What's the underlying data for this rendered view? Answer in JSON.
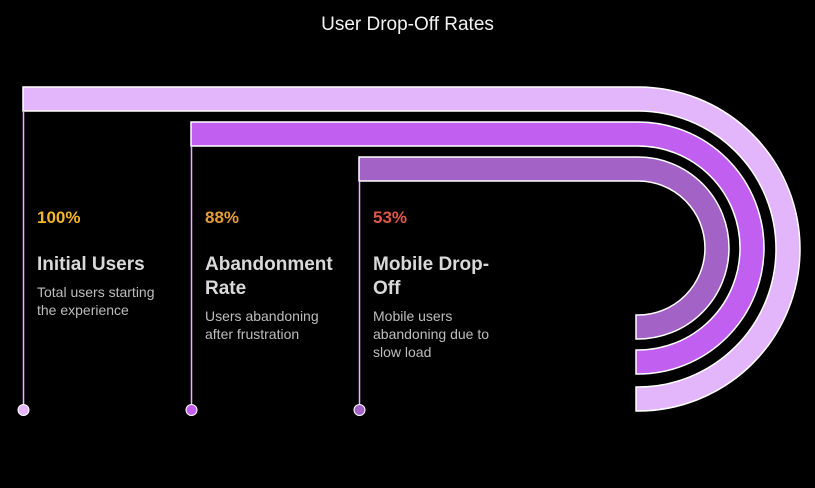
{
  "header": {
    "title": "User Drop-Off Rates"
  },
  "items": [
    {
      "percent": "100%",
      "label": "Initial Users",
      "description": "Total users starting the experience"
    },
    {
      "percent": "88%",
      "label": "Abandonment Rate",
      "description": "Users abandoning after frustration"
    },
    {
      "percent": "53%",
      "label": "Mobile Drop-Off",
      "description": "Mobile users abandoning due to slow load"
    }
  ]
}
